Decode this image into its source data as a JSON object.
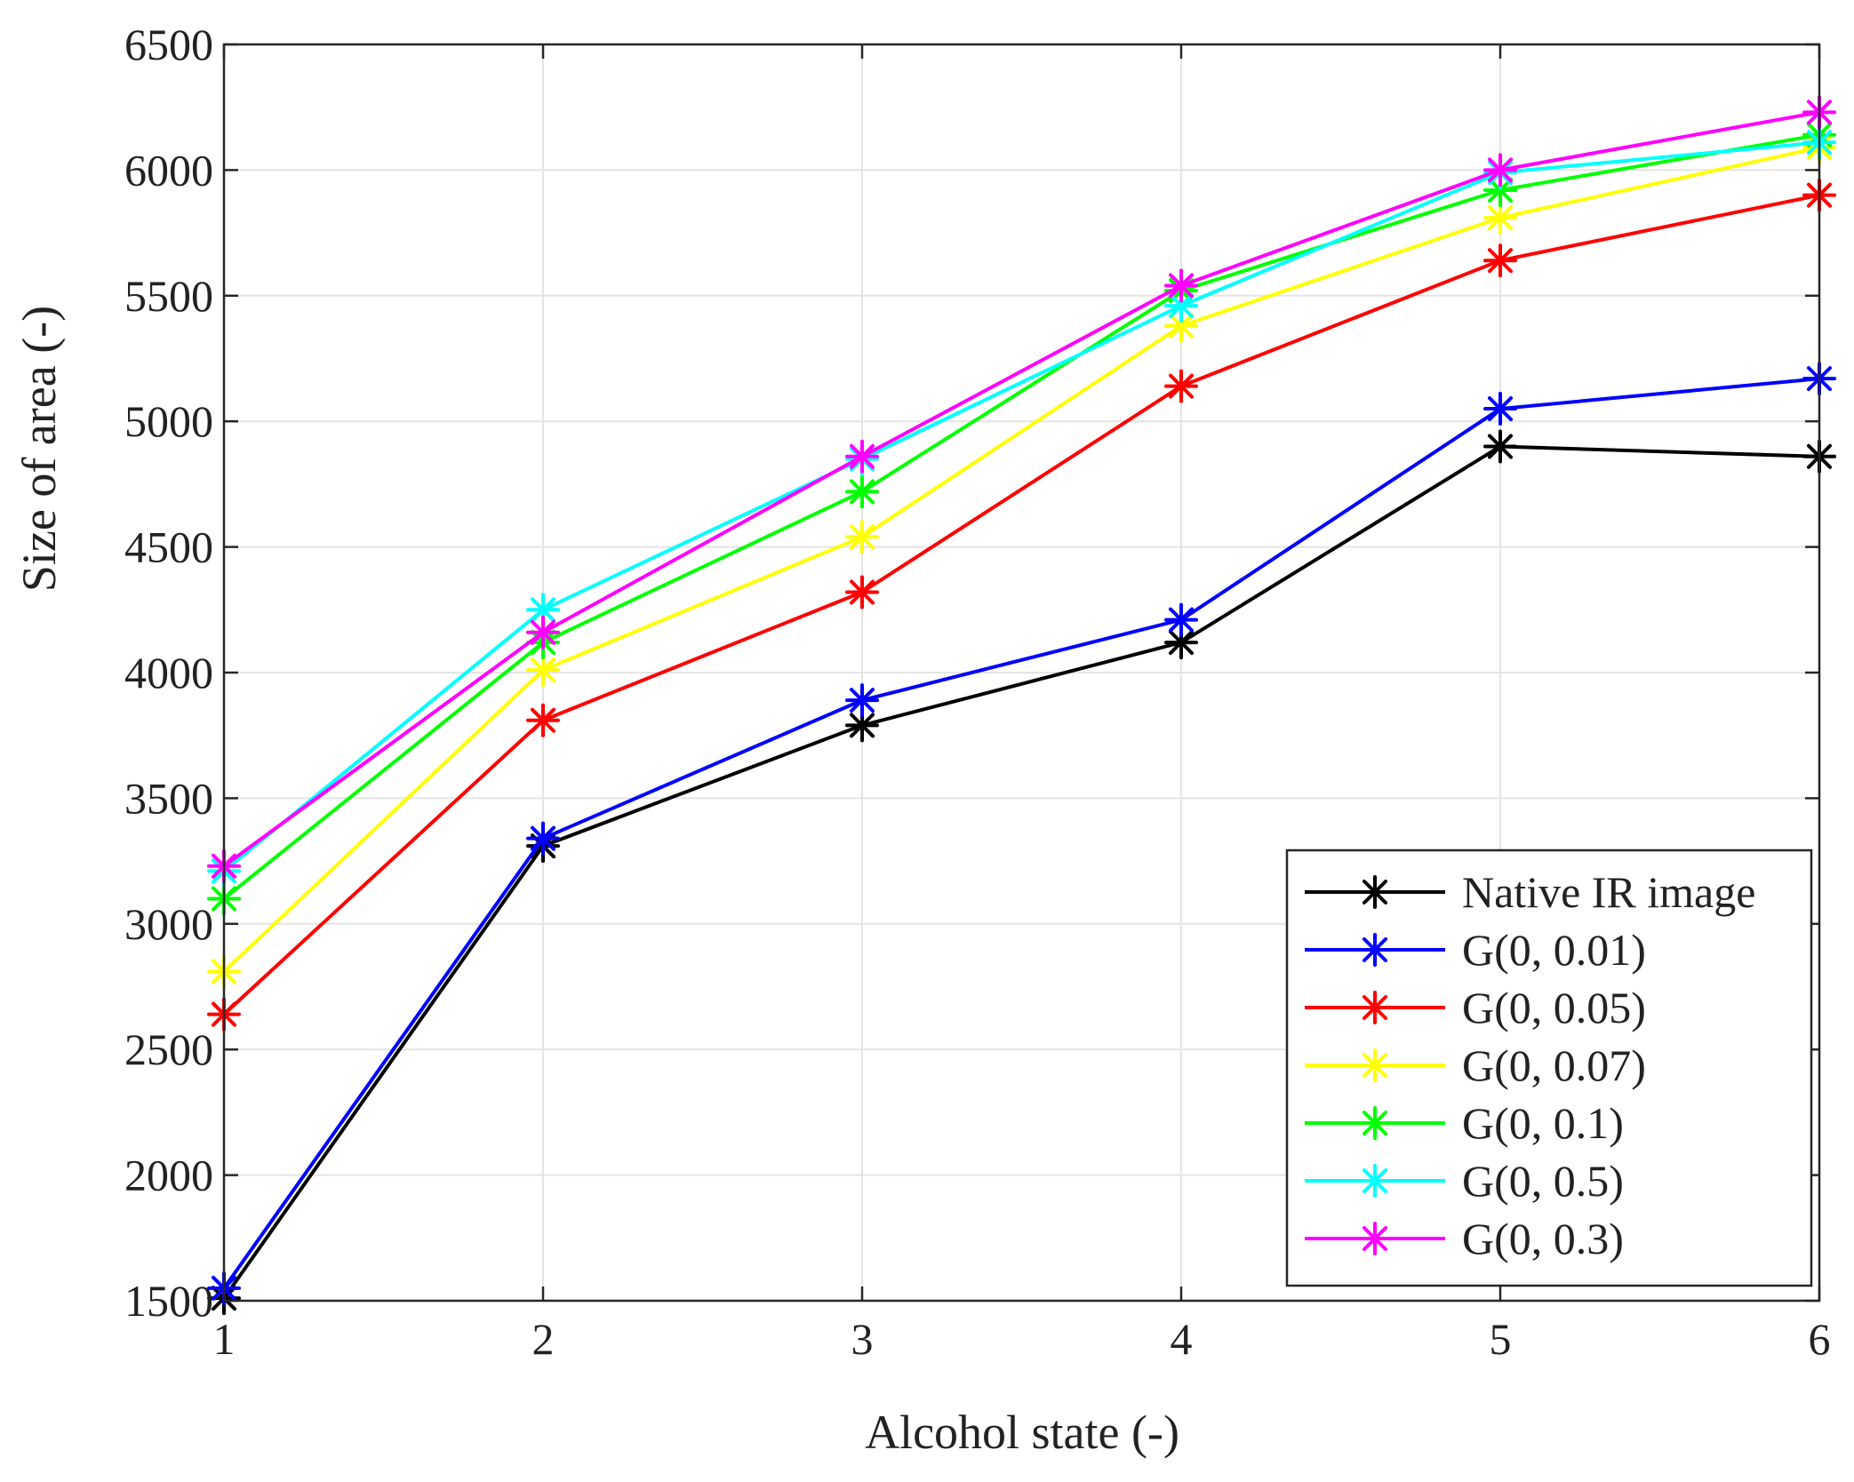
{
  "chart_data": {
    "type": "line",
    "title": "",
    "xlabel": "Alcohol state (-)",
    "ylabel": "Size of area (-)",
    "x": [
      1,
      2,
      3,
      4,
      5,
      6
    ],
    "x_ticks": [
      "1",
      "2",
      "3",
      "4",
      "5",
      "6"
    ],
    "xlim": [
      1,
      6
    ],
    "ylim": [
      1500,
      6500
    ],
    "y_ticks": [
      "1500",
      "2000",
      "2500",
      "3000",
      "3500",
      "4000",
      "4500",
      "5000",
      "5500",
      "6000",
      "6500"
    ],
    "grid": true,
    "marker": "asterisk",
    "legend_position": "bottom-right",
    "series": [
      {
        "name": "Native IR image",
        "color": "#000000",
        "values": [
          1510,
          3310,
          3790,
          4120,
          4900,
          4860
        ]
      },
      {
        "name": "G(0, 0.01)",
        "color": "#0000ff",
        "values": [
          1550,
          3340,
          3890,
          4210,
          5050,
          5170
        ]
      },
      {
        "name": "G(0, 0.05)",
        "color": "#ff0000",
        "values": [
          2640,
          3810,
          4320,
          5140,
          5640,
          5900
        ]
      },
      {
        "name": "G(0, 0.07)",
        "color": "#ffff00",
        "values": [
          2810,
          4010,
          4540,
          5380,
          5810,
          6090
        ]
      },
      {
        "name": "G(0, 0.1)",
        "color": "#00ff00",
        "values": [
          3100,
          4120,
          4720,
          5520,
          5920,
          6140
        ]
      },
      {
        "name": "G(0, 0.5)",
        "color": "#00ffff",
        "values": [
          3210,
          4250,
          4850,
          5460,
          5990,
          6110
        ]
      },
      {
        "name": "G(0, 0.3)",
        "color": "#ff00ff",
        "values": [
          3230,
          4160,
          4860,
          5540,
          6000,
          6230
        ]
      }
    ]
  }
}
